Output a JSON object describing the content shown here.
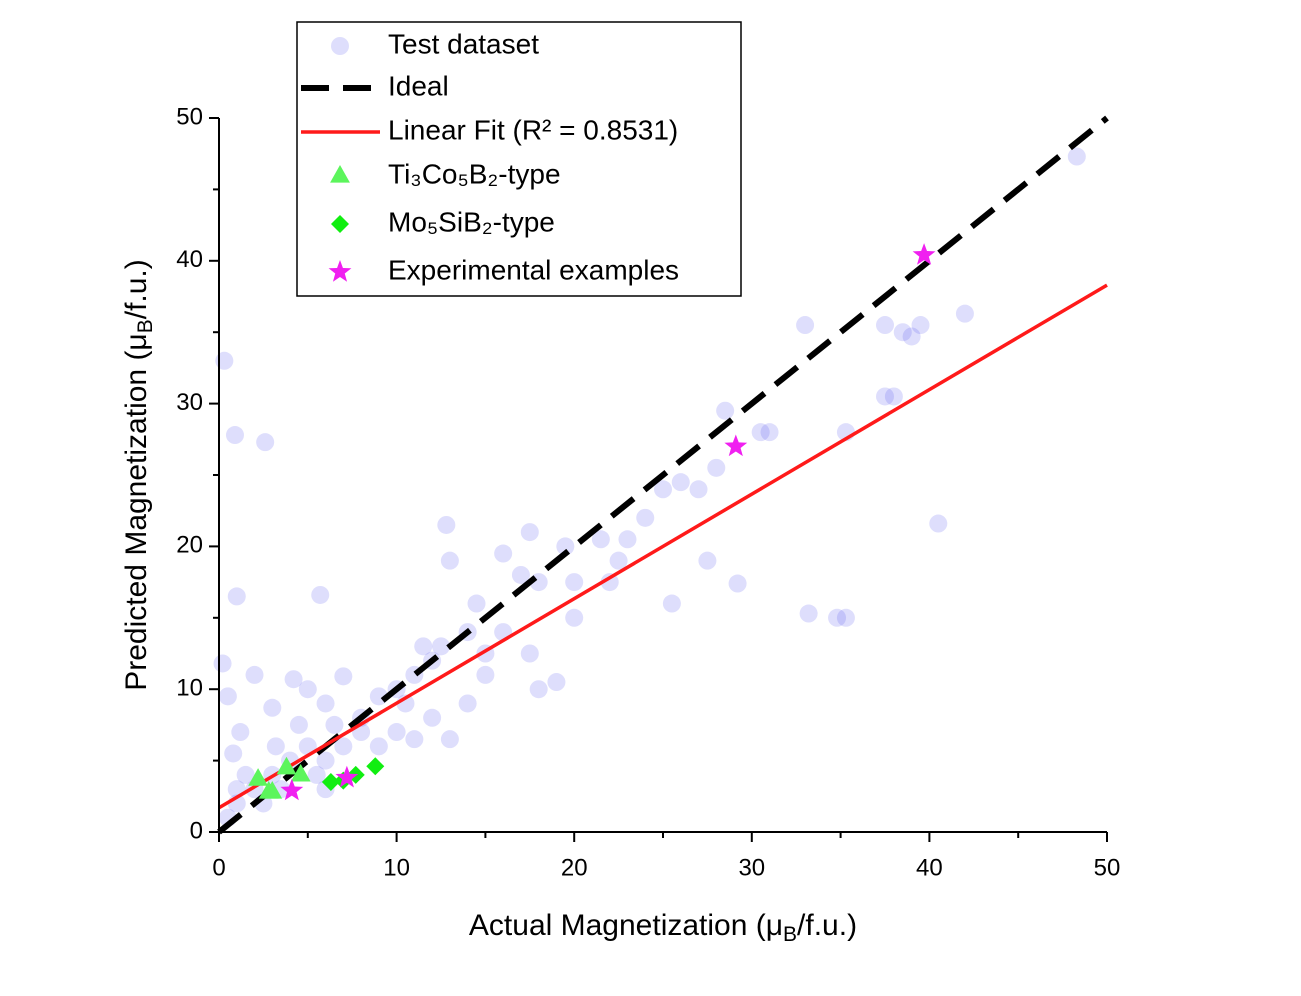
{
  "chart_data": {
    "type": "scatter",
    "xlabel": [
      "Actual Magnetization (μ",
      "B",
      "/f.u.)"
    ],
    "ylabel": [
      "Predicted Magnetization (μ",
      "B",
      "/f.u.)"
    ],
    "xlim": [
      0,
      50
    ],
    "ylim": [
      0,
      50
    ],
    "xticks": [
      0,
      10,
      20,
      30,
      40,
      50
    ],
    "yticks": [
      0,
      10,
      20,
      30,
      40,
      50
    ],
    "xminorticks": [
      5,
      15,
      25,
      35,
      45
    ],
    "yminorticks": [
      5,
      15,
      25,
      35,
      45
    ],
    "legend": "upper left",
    "series": [
      {
        "name": "Test dataset",
        "type": "scatter",
        "marker": "circle",
        "color": "#4a4af0",
        "x": [
          0.3,
          0.9,
          2.6,
          1.0,
          5.7,
          0.2,
          0.5,
          2,
          4.2,
          3,
          5,
          6,
          6.5,
          7,
          8,
          9,
          10,
          11,
          11.5,
          12.5,
          13,
          12.8,
          14,
          14.5,
          15,
          16,
          17,
          17.5,
          17.5,
          18,
          19,
          19.5,
          20,
          21.5,
          22,
          22.5,
          23,
          24,
          25,
          25.5,
          26,
          27,
          27.5,
          28,
          28.5,
          29.2,
          30.5,
          31,
          33,
          33.2,
          34.8,
          35.3,
          35.3,
          37.5,
          37.5,
          38,
          38.5,
          39,
          39.5,
          40.5,
          42,
          48.3,
          12,
          13,
          10,
          9,
          8,
          7,
          6,
          5,
          4,
          3,
          2,
          1,
          1.5,
          0.5,
          1,
          2.5,
          3.5,
          5.5,
          6,
          0.8,
          1.2,
          3.2,
          4.5,
          11,
          15,
          18,
          14,
          16,
          20,
          10.5,
          12
        ],
        "values": [
          33,
          27.8,
          27.3,
          16.5,
          16.6,
          11.8,
          9.5,
          11,
          10.7,
          8.7,
          10,
          9,
          7.5,
          10.9,
          8,
          9.5,
          10,
          11,
          13,
          13,
          19,
          21.5,
          14,
          16,
          12.5,
          19.5,
          18,
          21,
          12.5,
          17.5,
          10.5,
          20,
          17.5,
          20.5,
          17.5,
          19,
          20.5,
          22,
          24,
          16,
          24.5,
          24,
          19,
          25.5,
          29.5,
          17.4,
          28,
          28,
          35.5,
          15.3,
          15,
          15,
          28,
          35.5,
          30.5,
          30.5,
          35,
          34.7,
          35.5,
          21.6,
          36.3,
          47.3,
          8,
          6.5,
          7,
          6,
          7,
          6,
          5,
          6,
          5,
          4,
          3,
          2,
          4,
          1,
          3,
          2,
          3,
          4,
          3,
          5.5,
          7,
          6,
          7.5,
          6.5,
          11,
          10,
          9,
          14,
          15,
          9,
          12
        ]
      },
      {
        "name": "Ideal",
        "type": "line",
        "dash": true,
        "color": "#000000",
        "x": [
          0,
          50
        ],
        "values": [
          0,
          50
        ]
      },
      {
        "name": "Linear Fit (R² = 0.8531)",
        "type": "line",
        "dash": false,
        "color": "#ff1a1a",
        "x": [
          0,
          50
        ],
        "values": [
          1.7,
          38.3
        ]
      },
      {
        "name": "Ti₃Co₅B₂-type",
        "type": "scatter",
        "marker": "triangle",
        "color": "#5cf55c",
        "x": [
          2.2,
          2.8,
          3.8,
          4.6,
          3.0
        ],
        "values": [
          3.7,
          2.8,
          4.5,
          4.0,
          2.8
        ]
      },
      {
        "name": "Mo₅SiB₂-type",
        "type": "scatter",
        "marker": "diamond",
        "color": "#11ee11",
        "x": [
          6.3,
          7.0,
          7.7,
          8.8
        ],
        "values": [
          3.5,
          3.6,
          4.0,
          4.6
        ]
      },
      {
        "name": "Experimental examples",
        "type": "scatter",
        "marker": "star",
        "color": "#f020f0",
        "x": [
          4.1,
          7.2,
          29.1,
          39.7
        ],
        "values": [
          2.9,
          3.8,
          27.0,
          40.4
        ]
      }
    ]
  }
}
